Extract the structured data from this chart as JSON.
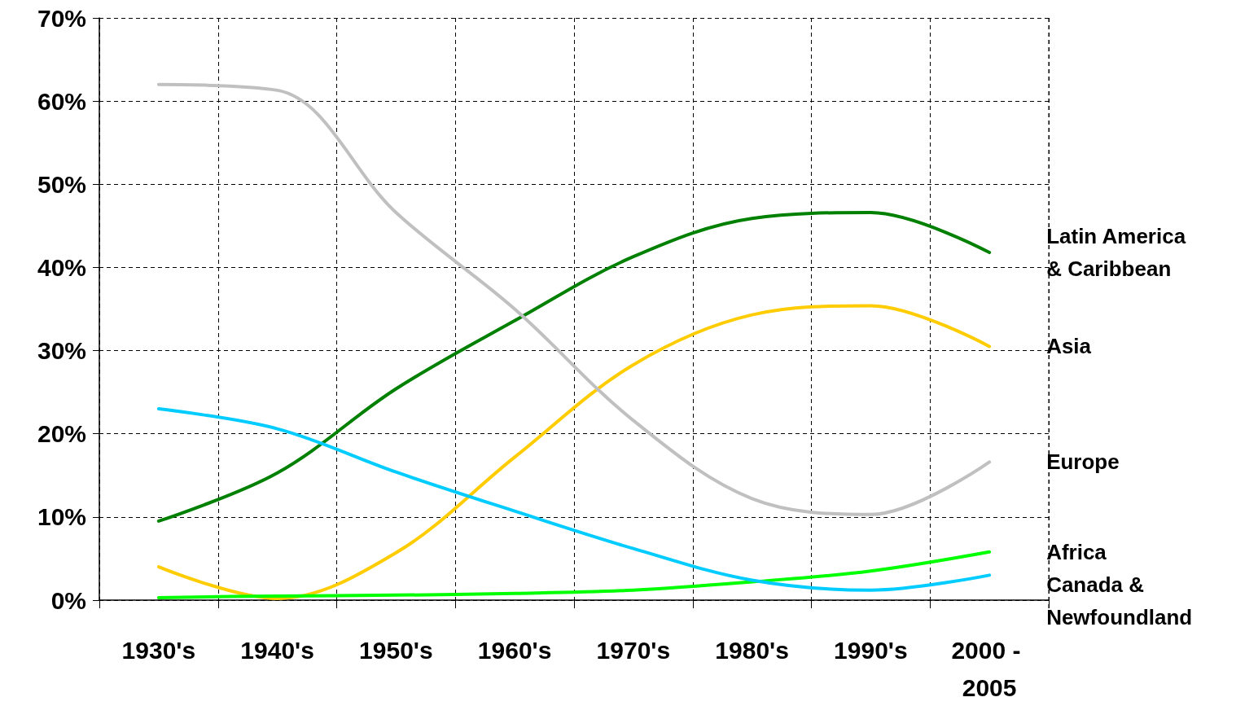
{
  "chart_data": {
    "type": "line",
    "categories": [
      "1930's",
      "1940's",
      "1950's",
      "1960's",
      "1970's",
      "1980's",
      "1990's",
      "2000 - 2005"
    ],
    "series": [
      {
        "name": "Latin America & Caribbean",
        "color": "#008000",
        "values": [
          9.5,
          15.3,
          25.4,
          33.6,
          41.3,
          45.9,
          46.6,
          41.8
        ]
      },
      {
        "name": "Asia",
        "color": "#ffcc00",
        "values": [
          4,
          0.2,
          5.7,
          17.2,
          28.3,
          34.3,
          35.4,
          30.5
        ]
      },
      {
        "name": "Europe",
        "color": "#c0c0c0",
        "values": [
          62,
          61.3,
          46.6,
          35,
          21.6,
          12.2,
          10.3,
          16.6
        ]
      },
      {
        "name": "Africa",
        "color": "#00ff00",
        "values": [
          0.3,
          0.5,
          0.6,
          0.8,
          1.2,
          2.2,
          3.5,
          5.8
        ]
      },
      {
        "name": "Canada & Newfoundland",
        "color": "#00ccff",
        "values": [
          23,
          20.6,
          15.4,
          10.7,
          6.2,
          2.4,
          1.2,
          3.0
        ]
      }
    ],
    "ylim": [
      0,
      70
    ],
    "yticks": [
      {
        "value": 0,
        "label": "0%"
      },
      {
        "value": 10,
        "label": "10%"
      },
      {
        "value": 20,
        "label": "20%"
      },
      {
        "value": 30,
        "label": "30%"
      },
      {
        "value": 40,
        "label": "40%"
      },
      {
        "value": 50,
        "label": "50%"
      },
      {
        "value": 60,
        "label": "60%"
      },
      {
        "value": 70,
        "label": "70%"
      }
    ],
    "grid": true,
    "marker": "none",
    "line_style": "solid",
    "legend": false
  }
}
